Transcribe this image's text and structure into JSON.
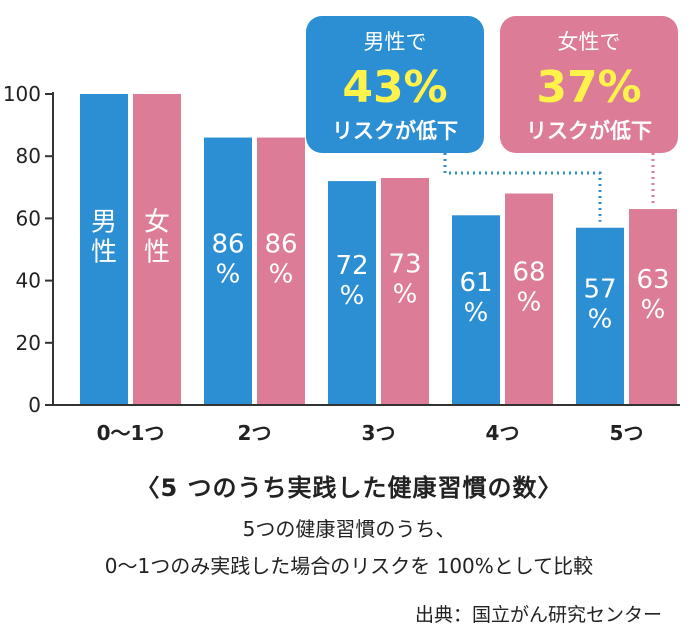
{
  "chart_data": {
    "type": "bar",
    "categories": [
      "0〜1つ",
      "2つ",
      "3つ",
      "4つ",
      "5つ"
    ],
    "series": [
      {
        "name": "男性",
        "values": [
          100,
          86,
          72,
          61,
          57
        ],
        "color": "#2c8fd3",
        "labels": [
          "男\n性",
          "86\n%",
          "72\n%",
          "61\n%",
          "57\n%"
        ]
      },
      {
        "name": "女性",
        "values": [
          100,
          86,
          73,
          68,
          63
        ],
        "color": "#dc7c97",
        "labels": [
          "女\n性",
          "86\n%",
          "73\n%",
          "68\n%",
          "63\n%"
        ]
      }
    ],
    "ylim": [
      0,
      100
    ],
    "yticks": [
      0,
      20,
      40,
      60,
      80,
      100
    ],
    "grid": false,
    "callouts": [
      {
        "line1": "男性で",
        "value": "43%",
        "line3": "リスクが低下",
        "color": "#2c8fd3",
        "series": 0,
        "category": 4
      },
      {
        "line1": "女性で",
        "value": "37%",
        "line3": "リスクが低下",
        "color": "#dc7c97",
        "series": 1,
        "category": 4
      }
    ],
    "value_color": "#fff24a",
    "title": "〈5 つのうち実践した健康習慣の数〉"
  },
  "caption": {
    "title": "〈5 つのうち実践した健康習慣の数〉",
    "line1": "5つの健康習慣のうち、",
    "line2": "0〜1つのみ実践した場合のリスクを 100%として比較"
  },
  "source": "出典：国立がん研究センター"
}
